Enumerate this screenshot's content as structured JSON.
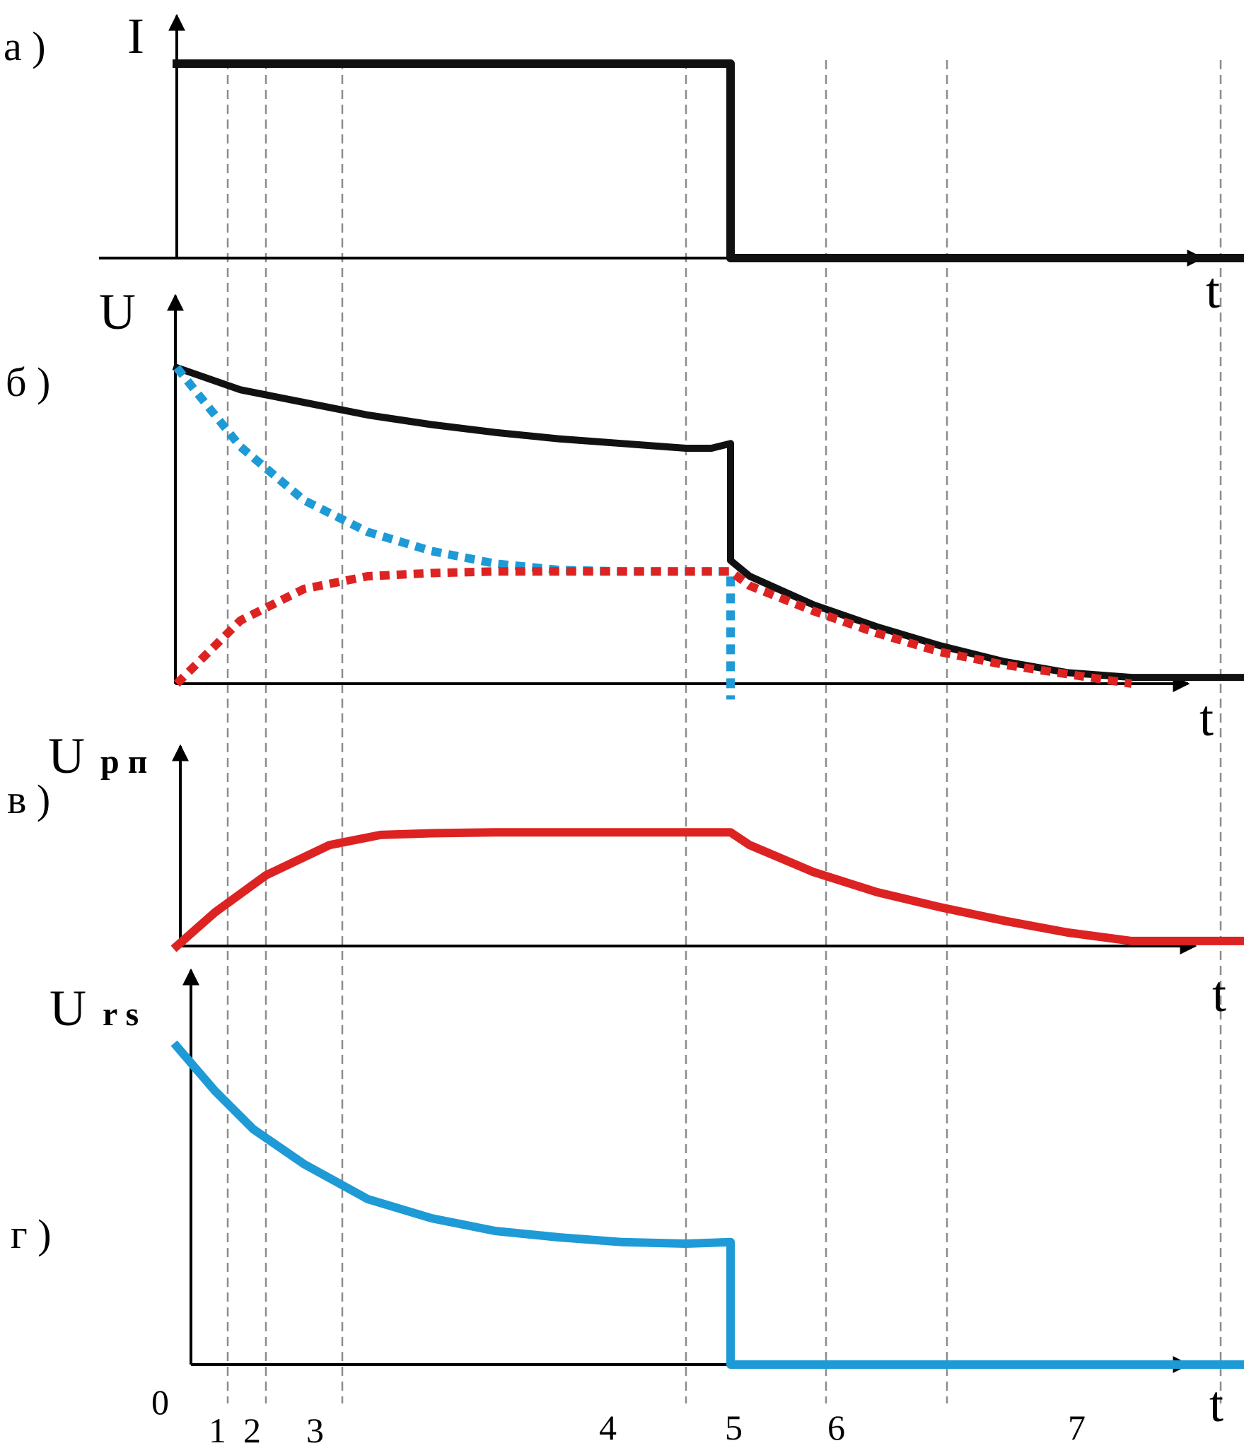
{
  "chart_data": [
    {
      "panel": "а )",
      "type": "line",
      "ylabel": "I",
      "xlabel": "t",
      "series": [
        {
          "color": "#111111",
          "style": "solid",
          "x": [
            0,
            4.35,
            4.35,
            8.5
          ],
          "y": [
            1,
            1,
            0,
            0
          ]
        }
      ]
    },
    {
      "panel": "б )",
      "type": "line",
      "ylabel": "U",
      "xlabel": "t",
      "series": [
        {
          "color": "#111111",
          "style": "solid",
          "x": [
            0,
            0.5,
            1,
            1.5,
            2,
            2.5,
            3,
            3.5,
            4,
            4.2,
            4.35,
            4.35,
            4.5,
            5,
            5.5,
            6,
            6.5,
            7,
            7.5,
            8,
            8.5
          ],
          "y": [
            1.0,
            0.93,
            0.89,
            0.85,
            0.82,
            0.795,
            0.775,
            0.76,
            0.745,
            0.745,
            0.76,
            0.39,
            0.34,
            0.25,
            0.18,
            0.12,
            0.07,
            0.035,
            0.02,
            0.02,
            0.02
          ]
        },
        {
          "color": "#1e9ad6",
          "style": "dotted",
          "x": [
            0,
            0.5,
            1,
            1.5,
            2,
            2.5,
            3,
            3.5,
            4,
            4.35,
            4.35
          ],
          "y": [
            1.0,
            0.75,
            0.58,
            0.48,
            0.42,
            0.38,
            0.36,
            0.355,
            0.355,
            0.355,
            -0.05
          ]
        },
        {
          "color": "#dd2222",
          "style": "dotted",
          "x": [
            0,
            0.5,
            1,
            1.5,
            2,
            2.5,
            3,
            3.5,
            4,
            4.35,
            4.5,
            5,
            5.5,
            6,
            6.5,
            7,
            7.5
          ],
          "y": [
            0.0,
            0.2,
            0.3,
            0.34,
            0.35,
            0.355,
            0.355,
            0.355,
            0.355,
            0.355,
            0.31,
            0.23,
            0.16,
            0.1,
            0.06,
            0.03,
            0.0
          ]
        }
      ]
    },
    {
      "panel": "в )",
      "type": "line",
      "ylabel": "U",
      "ylabel_sub": "р п",
      "xlabel": "t",
      "series": [
        {
          "color": "#dd2222",
          "style": "solid",
          "x": [
            0,
            0.3,
            0.7,
            1.2,
            1.6,
            2,
            2.5,
            3,
            3.5,
            4,
            4.35,
            4.5,
            5,
            5.5,
            6,
            6.5,
            7,
            7.5,
            8,
            8.5
          ],
          "y": [
            0.0,
            0.2,
            0.42,
            0.6,
            0.66,
            0.67,
            0.675,
            0.675,
            0.675,
            0.675,
            0.675,
            0.6,
            0.44,
            0.32,
            0.23,
            0.15,
            0.08,
            0.03,
            0.03,
            0.03
          ]
        }
      ]
    },
    {
      "panel": "г )",
      "type": "line",
      "ylabel": "U",
      "ylabel_sub": "r s",
      "xlabel": "t",
      "series": [
        {
          "color": "#1e9ad6",
          "style": "solid",
          "x": [
            0,
            0.3,
            0.6,
            1,
            1.5,
            2,
            2.5,
            3,
            3.5,
            4,
            4.35,
            4.35,
            5,
            6,
            7,
            8.5
          ],
          "y": [
            1.0,
            0.86,
            0.74,
            0.63,
            0.52,
            0.46,
            0.42,
            0.4,
            0.385,
            0.38,
            0.385,
            0.0,
            0.0,
            0.0,
            0.0,
            0.0
          ]
        }
      ]
    }
  ],
  "guides": {
    "x": [
      0.4,
      0.7,
      1.3,
      4.0,
      5.1,
      6.05,
      8.2
    ]
  },
  "tick_labels": [
    "0",
    "1",
    "2",
    "3",
    "4",
    "5",
    "6",
    "7"
  ]
}
